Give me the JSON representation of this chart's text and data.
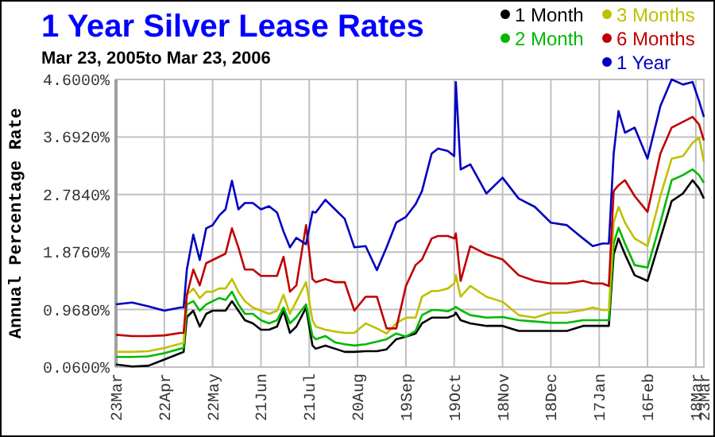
{
  "chart_data": {
    "type": "line",
    "title": "1 Year Silver Lease Rates",
    "subtitle": "Mar 23, 2005to Mar 23, 2006",
    "ylabel": "Annual Percentage Rate",
    "x": [
      "2005-03-23",
      "2005-04-02",
      "2005-04-12",
      "2005-04-22",
      "2005-05-02",
      "2005-05-04",
      "2005-05-06",
      "2005-05-10",
      "2005-05-14",
      "2005-05-18",
      "2005-05-22",
      "2005-05-26",
      "2005-05-30",
      "2005-06-03",
      "2005-06-07",
      "2005-06-11",
      "2005-06-16",
      "2005-06-21",
      "2005-06-26",
      "2005-07-01",
      "2005-07-05",
      "2005-07-09",
      "2005-07-13",
      "2005-07-19",
      "2005-07-23",
      "2005-07-25",
      "2005-07-31",
      "2005-08-06",
      "2005-08-12",
      "2005-08-18",
      "2005-08-25",
      "2005-09-01",
      "2005-09-07",
      "2005-09-13",
      "2005-09-19",
      "2005-09-25",
      "2005-09-29",
      "2005-10-05",
      "2005-10-09",
      "2005-10-15",
      "2005-10-19",
      "2005-10-20",
      "2005-10-23",
      "2005-10-29",
      "2005-11-08",
      "2005-11-18",
      "2005-11-28",
      "2005-12-08",
      "2005-12-18",
      "2005-12-28",
      "2006-01-07",
      "2006-01-13",
      "2006-01-19",
      "2006-01-23",
      "2006-01-26",
      "2006-01-29",
      "2006-02-02",
      "2006-02-08",
      "2006-02-16",
      "2006-02-24",
      "2006-03-03",
      "2006-03-10",
      "2006-03-16",
      "2006-03-20",
      "2006-03-23"
    ],
    "series": [
      {
        "name": "1 Month",
        "color": "#000000",
        "values": [
          0.1,
          0.07,
          0.08,
          0.18,
          0.28,
          0.3,
          0.85,
          0.95,
          0.7,
          0.9,
          0.95,
          0.95,
          0.95,
          1.1,
          0.95,
          0.8,
          0.75,
          0.65,
          0.65,
          0.7,
          0.95,
          0.6,
          0.7,
          1.0,
          0.4,
          0.35,
          0.4,
          0.35,
          0.3,
          0.3,
          0.31,
          0.31,
          0.34,
          0.5,
          0.54,
          0.59,
          0.75,
          0.84,
          0.84,
          0.84,
          0.88,
          0.92,
          0.8,
          0.75,
          0.71,
          0.71,
          0.63,
          0.63,
          0.63,
          0.63,
          0.71,
          0.71,
          0.71,
          0.71,
          1.84,
          2.09,
          1.84,
          1.51,
          1.42,
          2.09,
          2.68,
          2.8,
          3.01,
          2.88,
          2.72
        ]
      },
      {
        "name": "2 Month",
        "color": "#00b800",
        "values": [
          0.22,
          0.22,
          0.23,
          0.28,
          0.35,
          0.36,
          1.05,
          1.1,
          0.95,
          1.05,
          1.1,
          1.15,
          1.12,
          1.25,
          1.05,
          0.9,
          0.9,
          0.8,
          0.75,
          0.8,
          1.0,
          0.75,
          0.85,
          1.05,
          0.55,
          0.5,
          0.55,
          0.45,
          0.42,
          0.4,
          0.42,
          0.46,
          0.5,
          0.59,
          0.54,
          0.63,
          0.88,
          0.96,
          0.96,
          0.94,
          0.99,
          1.01,
          0.96,
          0.88,
          0.84,
          0.85,
          0.8,
          0.78,
          0.76,
          0.76,
          0.8,
          0.8,
          0.8,
          0.8,
          2.01,
          2.26,
          2.01,
          1.67,
          1.63,
          2.34,
          3.01,
          3.09,
          3.18,
          3.09,
          2.97
        ]
      },
      {
        "name": "3 Months",
        "color": "#c0c000",
        "values": [
          0.3,
          0.3,
          0.31,
          0.36,
          0.43,
          0.44,
          1.2,
          1.3,
          1.15,
          1.25,
          1.25,
          1.3,
          1.3,
          1.45,
          1.25,
          1.1,
          1.0,
          0.95,
          0.9,
          0.95,
          1.2,
          0.9,
          1.1,
          1.4,
          0.8,
          0.7,
          0.65,
          0.62,
          0.6,
          0.6,
          0.75,
          0.67,
          0.59,
          0.75,
          0.84,
          0.84,
          1.17,
          1.26,
          1.26,
          1.3,
          1.38,
          1.51,
          1.17,
          1.34,
          1.17,
          1.09,
          0.88,
          0.84,
          0.92,
          0.92,
          0.96,
          1.0,
          0.96,
          0.96,
          2.34,
          2.59,
          2.34,
          2.09,
          1.97,
          2.76,
          3.35,
          3.39,
          3.6,
          3.68,
          3.3
        ]
      },
      {
        "name": "6 Months",
        "color": "#c00000",
        "values": [
          0.57,
          0.55,
          0.55,
          0.56,
          0.6,
          0.6,
          1.2,
          1.6,
          1.35,
          1.7,
          1.75,
          1.8,
          1.85,
          2.25,
          1.95,
          1.6,
          1.6,
          1.5,
          1.5,
          1.5,
          1.8,
          1.25,
          1.35,
          2.3,
          1.45,
          1.4,
          1.45,
          1.4,
          1.4,
          0.95,
          1.17,
          1.17,
          0.67,
          0.67,
          1.34,
          1.67,
          1.76,
          2.09,
          2.13,
          2.13,
          2.09,
          2.17,
          1.42,
          1.97,
          1.84,
          1.76,
          1.51,
          1.42,
          1.38,
          1.38,
          1.42,
          1.38,
          1.38,
          1.34,
          2.84,
          2.93,
          3.01,
          2.76,
          2.51,
          3.43,
          3.84,
          3.93,
          4.01,
          3.89,
          3.64
        ]
      },
      {
        "name": "1 Year",
        "color": "#0000c0",
        "values": [
          1.05,
          1.08,
          1.02,
          0.95,
          1.0,
          1.0,
          1.6,
          2.15,
          1.75,
          2.25,
          2.3,
          2.45,
          2.55,
          3.0,
          2.55,
          2.65,
          2.65,
          2.55,
          2.6,
          2.5,
          2.2,
          1.95,
          2.1,
          2.0,
          2.51,
          2.5,
          2.7,
          2.55,
          2.4,
          1.95,
          1.97,
          1.59,
          1.95,
          2.34,
          2.43,
          2.63,
          2.84,
          3.43,
          3.51,
          3.47,
          3.39,
          4.56,
          3.18,
          3.26,
          2.8,
          3.05,
          2.72,
          2.59,
          2.34,
          2.3,
          2.09,
          1.97,
          2.01,
          2.01,
          3.43,
          4.1,
          3.76,
          3.84,
          3.35,
          4.18,
          4.6,
          4.52,
          4.56,
          4.26,
          4.01
        ]
      }
    ],
    "xlim": [
      "2005-03-23",
      "2006-03-23"
    ],
    "xticks": [
      {
        "value": "2005-03-23",
        "label": "23Mar"
      },
      {
        "value": "2005-04-22",
        "label": "22Apr"
      },
      {
        "value": "2005-05-22",
        "label": "22May"
      },
      {
        "value": "2005-06-21",
        "label": "21Jun"
      },
      {
        "value": "2005-07-21",
        "label": "21Jul"
      },
      {
        "value": "2005-08-20",
        "label": "20Aug"
      },
      {
        "value": "2005-09-19",
        "label": "19Sep"
      },
      {
        "value": "2005-10-19",
        "label": "19Oct"
      },
      {
        "value": "2005-11-18",
        "label": "18Nov"
      },
      {
        "value": "2005-12-18",
        "label": "18Dec"
      },
      {
        "value": "2006-01-17",
        "label": "17Jan"
      },
      {
        "value": "2006-02-16",
        "label": "16Feb"
      },
      {
        "value": "2006-03-18",
        "label": "18Mar"
      },
      {
        "value": "2006-03-23",
        "label": "23Mar"
      }
    ],
    "ylim": [
      0.06,
      4.6
    ],
    "yticks": [
      {
        "value": 0.06,
        "label": "0.0600%"
      },
      {
        "value": 0.968,
        "label": "0.9680%"
      },
      {
        "value": 1.876,
        "label": "1.8760%"
      },
      {
        "value": 2.784,
        "label": "2.7840%"
      },
      {
        "value": 3.692,
        "label": "3.6920%"
      },
      {
        "value": 4.6,
        "label": "4.6000%"
      }
    ],
    "grid": true,
    "legend": "top right",
    "marker": "none",
    "line_style": "solid"
  }
}
